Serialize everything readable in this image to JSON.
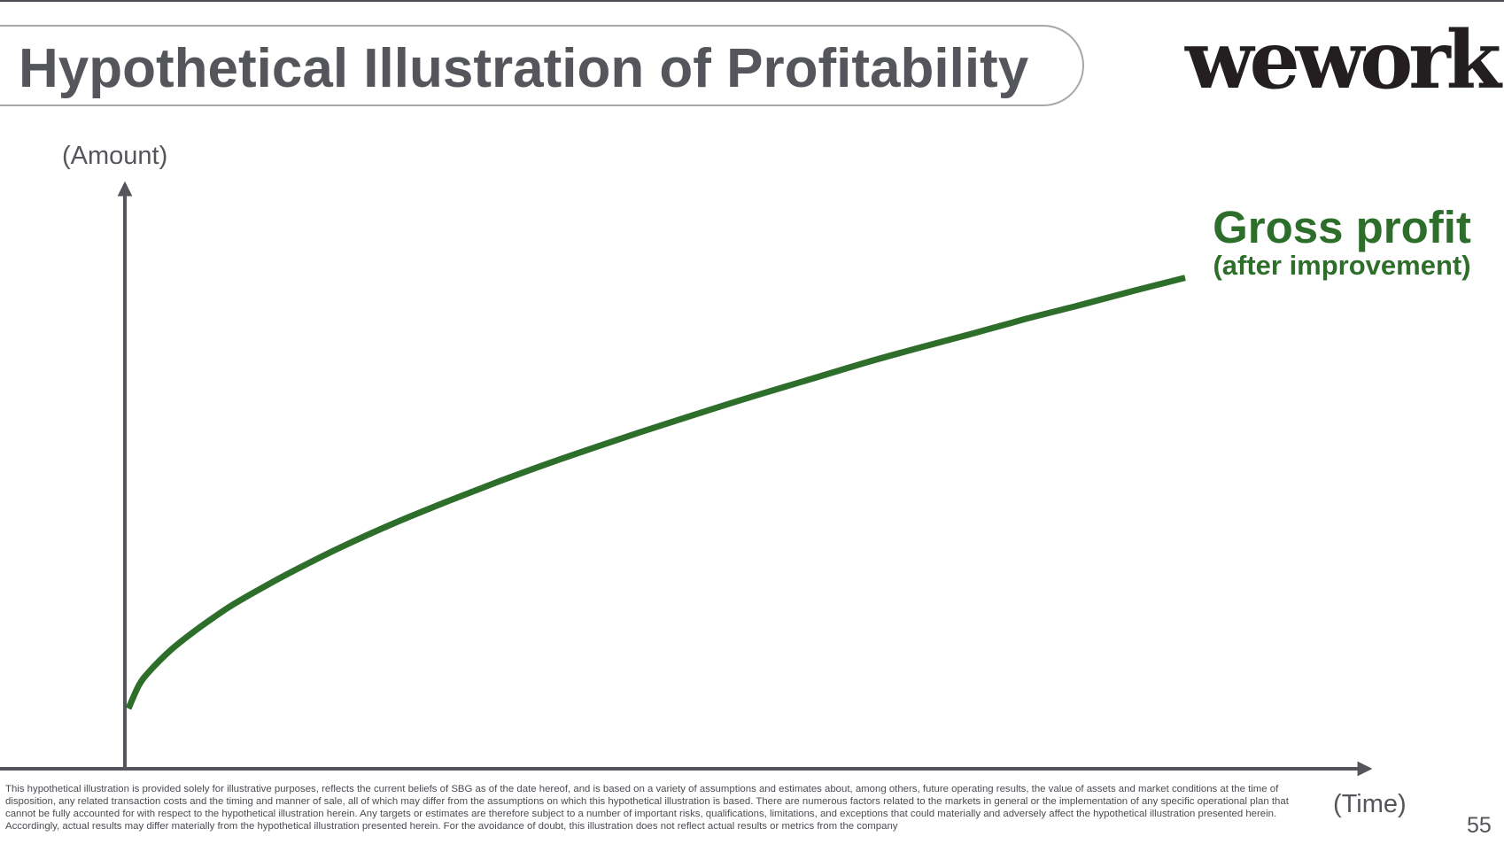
{
  "slide": {
    "title": "Hypothetical Illustration of Profitability",
    "logo_text": "wework",
    "disclaimer": "This hypothetical illustration is provided solely for illustrative purposes, reflects the current beliefs of SBG as of the date hereof, and is based on a variety of assumptions and estimates about, among others, future operating results, the value of assets and market conditions at the time of disposition, any related transaction costs and the timing and manner of sale, all of which may differ from the assumptions on which this hypothetical illustration is based. There are numerous factors related to the markets in general or the implementation of any specific operational plan that cannot be fully accounted for with respect to the hypothetical illustration herein. Any targets or estimates are therefore subject to a number of important risks, qualifications, limitations, and exceptions that could materially and adversely affect the hypothetical illustration presented herein. Accordingly, actual results may differ materially from the hypothetical illustration presented herein. For the avoidance of doubt, this illustration does not reflect  actual results or metrics from the company",
    "page_number": "55"
  },
  "colors": {
    "title_text": "#54565b",
    "title_border": "#a5a7ab",
    "axis": "#54565b",
    "series_line": "#2e6e2b",
    "logo": "#231f20"
  },
  "chart_data": {
    "type": "line",
    "title": "",
    "xlabel": "(Time)",
    "ylabel": "(Amount)",
    "xlim": [
      0,
      100
    ],
    "ylim": [
      0,
      100
    ],
    "x_ticks": "none",
    "y_ticks": "none",
    "grid": false,
    "legend": "none",
    "series": [
      {
        "label_line1": "Gross profit",
        "label_line2": "(after improvement)",
        "color": "#2e6e2b",
        "x": [
          0,
          1,
          2,
          4,
          6,
          8,
          10,
          13,
          16,
          20,
          25,
          30,
          35,
          40,
          45,
          50,
          55,
          60,
          65,
          70,
          75,
          80,
          85,
          90,
          95,
          100
        ],
        "y": [
          10.3,
          14.3,
          16.7,
          20.3,
          23.2,
          25.8,
          28.2,
          31.3,
          34.2,
          37.8,
          41.9,
          45.6,
          49.1,
          52.4,
          55.5,
          58.5,
          61.4,
          64.2,
          66.9,
          69.6,
          72.1,
          74.5,
          77.0,
          79.3,
          81.7,
          84.0
        ]
      }
    ]
  }
}
